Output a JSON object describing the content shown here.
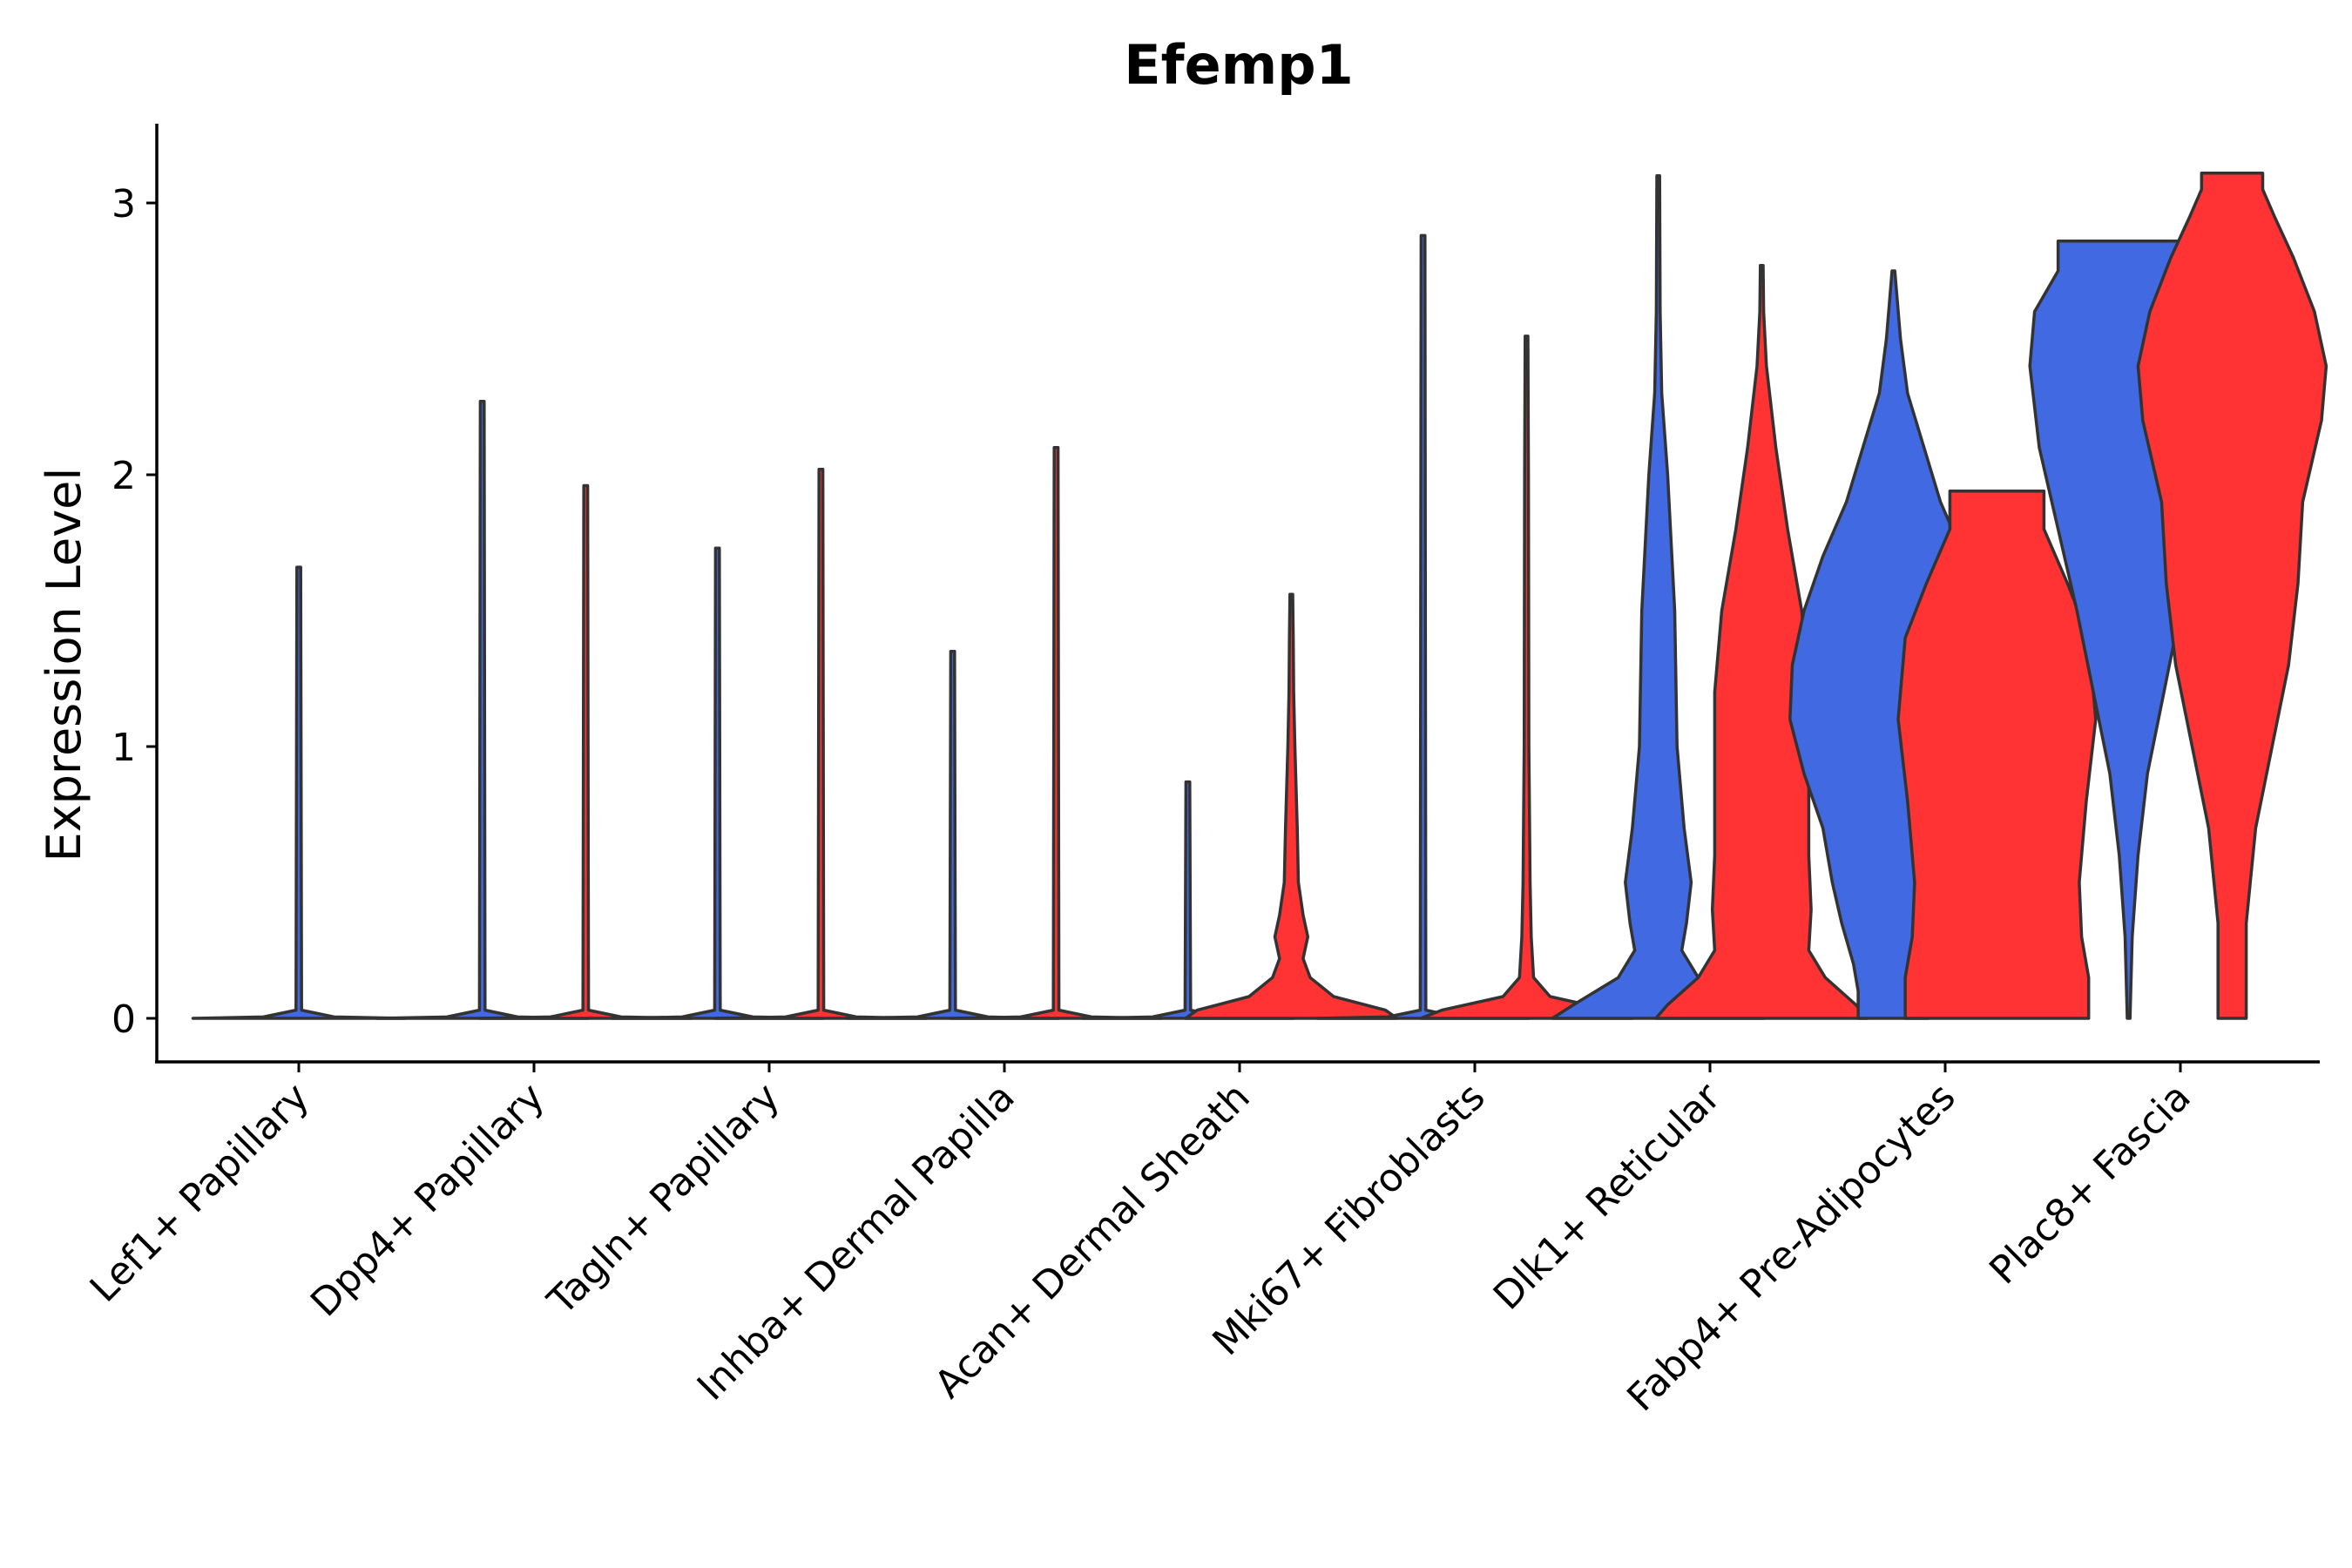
{
  "chart_data": {
    "type": "violin",
    "title": "Efemp1",
    "xlabel": "",
    "ylabel": "Expression Level",
    "ylim": [
      -0.16,
      3.28
    ],
    "yticks": [
      0,
      1,
      2,
      3
    ],
    "grid": false,
    "legend": "none",
    "series": [
      {
        "name": "group-1",
        "color": "#4169E1"
      },
      {
        "name": "group-2",
        "color": "#FF3333"
      }
    ],
    "categories": [
      "Lef1+ Papillary",
      "Dpp4+ Papillary",
      "Tagln+ Papillary",
      "Inhba+ Dermal Papilla",
      "Acan+ Dermal Sheath",
      "Mki67+ Fibroblasts",
      "Dlk1+ Reticular",
      "Fabp4+ Pre-Adipocytes",
      "Plac8+ Fascia"
    ],
    "violins": [
      {
        "category": "Lef1+ Papillary",
        "series": "group-1",
        "offset": 0,
        "max": 1.66,
        "profile": [
          [
            0,
            0.45
          ],
          [
            0.005,
            0.15
          ],
          [
            0.03,
            0.012
          ],
          [
            1.66,
            0.008
          ]
        ]
      },
      {
        "category": "Dpp4+ Papillary",
        "series": "group-1",
        "offset": -0.22,
        "max": 2.27,
        "profile": [
          [
            0,
            0.45
          ],
          [
            0.005,
            0.15
          ],
          [
            0.03,
            0.012
          ],
          [
            2.27,
            0.008
          ]
        ]
      },
      {
        "category": "Dpp4+ Papillary",
        "series": "group-2",
        "offset": 0.22,
        "max": 1.96,
        "profile": [
          [
            0,
            0.45
          ],
          [
            0.005,
            0.15
          ],
          [
            0.03,
            0.012
          ],
          [
            1.96,
            0.008
          ]
        ]
      },
      {
        "category": "Tagln+ Papillary",
        "series": "group-1",
        "offset": -0.22,
        "max": 1.73,
        "profile": [
          [
            0,
            0.45
          ],
          [
            0.005,
            0.15
          ],
          [
            0.03,
            0.012
          ],
          [
            1.73,
            0.008
          ]
        ]
      },
      {
        "category": "Tagln+ Papillary",
        "series": "group-2",
        "offset": 0.22,
        "max": 2.02,
        "profile": [
          [
            0,
            0.45
          ],
          [
            0.005,
            0.15
          ],
          [
            0.03,
            0.012
          ],
          [
            2.02,
            0.008
          ]
        ]
      },
      {
        "category": "Inhba+ Dermal Papilla",
        "series": "group-1",
        "offset": -0.22,
        "max": 1.35,
        "profile": [
          [
            0,
            0.45
          ],
          [
            0.005,
            0.15
          ],
          [
            0.03,
            0.012
          ],
          [
            1.35,
            0.008
          ]
        ]
      },
      {
        "category": "Inhba+ Dermal Papilla",
        "series": "group-2",
        "offset": 0.22,
        "max": 2.1,
        "profile": [
          [
            0,
            0.45
          ],
          [
            0.005,
            0.15
          ],
          [
            0.03,
            0.012
          ],
          [
            2.1,
            0.008
          ]
        ]
      },
      {
        "category": "Acan+ Dermal Sheath",
        "series": "group-1",
        "offset": -0.22,
        "max": 0.87,
        "profile": [
          [
            0,
            0.45
          ],
          [
            0.005,
            0.15
          ],
          [
            0.03,
            0.012
          ],
          [
            0.87,
            0.008
          ]
        ]
      },
      {
        "category": "Acan+ Dermal Sheath",
        "series": "group-2",
        "offset": 0.22,
        "max": 1.56,
        "profile": [
          [
            0,
            0.45
          ],
          [
            0.03,
            0.4
          ],
          [
            0.08,
            0.18
          ],
          [
            0.15,
            0.08
          ],
          [
            0.22,
            0.05
          ],
          [
            0.3,
            0.07
          ],
          [
            0.38,
            0.05
          ],
          [
            0.5,
            0.03
          ],
          [
            0.7,
            0.025
          ],
          [
            1.0,
            0.015
          ],
          [
            1.2,
            0.01
          ],
          [
            1.4,
            0.008
          ],
          [
            1.56,
            0.006
          ]
        ]
      },
      {
        "category": "Mki67+ Fibroblasts",
        "series": "group-1",
        "offset": -0.22,
        "max": 2.88,
        "profile": [
          [
            0,
            0.45
          ],
          [
            0.005,
            0.15
          ],
          [
            0.03,
            0.012
          ],
          [
            2.88,
            0.008
          ]
        ]
      },
      {
        "category": "Mki67+ Fibroblasts",
        "series": "group-2",
        "offset": 0.22,
        "max": 2.51,
        "profile": [
          [
            0,
            0.45
          ],
          [
            0.03,
            0.36
          ],
          [
            0.08,
            0.1
          ],
          [
            0.15,
            0.03
          ],
          [
            0.3,
            0.02
          ],
          [
            0.5,
            0.015
          ],
          [
            1.0,
            0.01
          ],
          [
            2.0,
            0.008
          ],
          [
            2.51,
            0.006
          ]
        ]
      },
      {
        "category": "Dlk1+ Reticular",
        "series": "group-1",
        "offset": -0.22,
        "max": 3.1,
        "profile": [
          [
            0,
            0.45
          ],
          [
            0.05,
            0.36
          ],
          [
            0.15,
            0.17
          ],
          [
            0.25,
            0.1
          ],
          [
            0.35,
            0.12
          ],
          [
            0.5,
            0.14
          ],
          [
            0.7,
            0.11
          ],
          [
            1.0,
            0.08
          ],
          [
            1.5,
            0.07
          ],
          [
            2.0,
            0.04
          ],
          [
            2.3,
            0.015
          ],
          [
            2.6,
            0.008
          ],
          [
            3.1,
            0.006
          ]
        ]
      },
      {
        "category": "Dlk1+ Reticular",
        "series": "group-2",
        "offset": 0.22,
        "max": 2.77,
        "profile": [
          [
            0,
            0.45
          ],
          [
            0.05,
            0.4
          ],
          [
            0.15,
            0.27
          ],
          [
            0.25,
            0.2
          ],
          [
            0.4,
            0.21
          ],
          [
            0.6,
            0.2
          ],
          [
            0.9,
            0.2
          ],
          [
            1.2,
            0.2
          ],
          [
            1.5,
            0.17
          ],
          [
            1.8,
            0.11
          ],
          [
            2.1,
            0.06
          ],
          [
            2.4,
            0.02
          ],
          [
            2.6,
            0.008
          ],
          [
            2.77,
            0.006
          ]
        ]
      },
      {
        "category": "Fabp4+ Pre-Adipocytes",
        "series": "group-1",
        "offset": -0.22,
        "max": 2.75,
        "profile": [
          [
            0,
            0.15
          ],
          [
            0.1,
            0.15
          ],
          [
            0.2,
            0.17
          ],
          [
            0.35,
            0.22
          ],
          [
            0.5,
            0.26
          ],
          [
            0.7,
            0.3
          ],
          [
            0.9,
            0.38
          ],
          [
            1.1,
            0.44
          ],
          [
            1.3,
            0.43
          ],
          [
            1.5,
            0.38
          ],
          [
            1.7,
            0.3
          ],
          [
            1.9,
            0.2
          ],
          [
            2.1,
            0.13
          ],
          [
            2.3,
            0.06
          ],
          [
            2.5,
            0.03
          ],
          [
            2.75,
            0.006
          ]
        ]
      },
      {
        "category": "Fabp4+ Pre-Adipocytes",
        "series": "group-2",
        "offset": 0.22,
        "max": 1.94,
        "profile": [
          [
            0,
            0.39
          ],
          [
            0.15,
            0.39
          ],
          [
            0.3,
            0.36
          ],
          [
            0.5,
            0.35
          ],
          [
            0.8,
            0.38
          ],
          [
            1.1,
            0.42
          ],
          [
            1.4,
            0.39
          ],
          [
            1.6,
            0.3
          ],
          [
            1.8,
            0.2
          ],
          [
            1.94,
            0.2
          ]
        ]
      },
      {
        "category": "Plac8+ Fascia",
        "series": "group-1",
        "offset": -0.22,
        "max": 2.86,
        "profile": [
          [
            0,
            0.006
          ],
          [
            0.3,
            0.015
          ],
          [
            0.6,
            0.04
          ],
          [
            0.9,
            0.08
          ],
          [
            1.2,
            0.15
          ],
          [
            1.5,
            0.22
          ],
          [
            1.8,
            0.3
          ],
          [
            2.1,
            0.38
          ],
          [
            2.4,
            0.42
          ],
          [
            2.6,
            0.4
          ],
          [
            2.75,
            0.3
          ],
          [
            2.86,
            0.3
          ]
        ]
      },
      {
        "category": "Plac8+ Fascia",
        "series": "group-2",
        "offset": 0.22,
        "max": 3.11,
        "profile": [
          [
            0,
            0.06
          ],
          [
            0.35,
            0.06
          ],
          [
            0.7,
            0.1
          ],
          [
            1.0,
            0.17
          ],
          [
            1.3,
            0.24
          ],
          [
            1.6,
            0.28
          ],
          [
            1.9,
            0.3
          ],
          [
            2.2,
            0.38
          ],
          [
            2.4,
            0.4
          ],
          [
            2.6,
            0.35
          ],
          [
            2.8,
            0.26
          ],
          [
            2.95,
            0.18
          ],
          [
            3.05,
            0.13
          ],
          [
            3.11,
            0.13
          ]
        ]
      }
    ]
  }
}
